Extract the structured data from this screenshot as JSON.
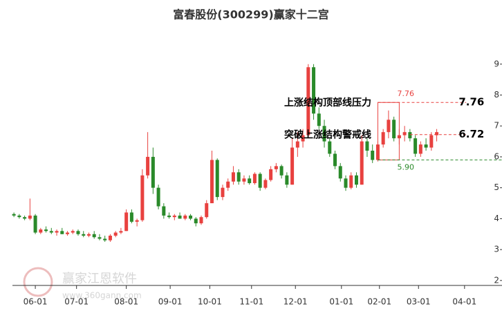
{
  "chart_data": {
    "type": "candlestick",
    "title": "富春股份(300299)赢家十二宫",
    "up_color": "#e8413f",
    "down_color": "#2a8a2a",
    "ylim": [
      1.84,
      9.8
    ],
    "yticks": [
      2,
      3,
      4,
      5,
      6,
      7,
      8,
      9
    ],
    "xlim": [
      -2.6,
      91.2
    ],
    "xticks": [
      {
        "value": 4,
        "label": "06-01"
      },
      {
        "value": 11.7,
        "label": "07-01"
      },
      {
        "value": 21,
        "label": "08-01"
      },
      {
        "value": 29.2,
        "label": "09-01"
      },
      {
        "value": 36.6,
        "label": "10-01"
      },
      {
        "value": 44.4,
        "label": "11-01"
      },
      {
        "value": 52.6,
        "label": "12-01"
      },
      {
        "value": 61.2,
        "label": "01-01"
      },
      {
        "value": 68.3,
        "label": "02-01"
      },
      {
        "value": 75.6,
        "label": "03-01"
      },
      {
        "value": 84.2,
        "label": "04-01"
      }
    ],
    "ohlc": [
      [
        4.15,
        4.2,
        4.05,
        4.1
      ],
      [
        4.1,
        4.15,
        4.0,
        4.05
      ],
      [
        4.05,
        4.1,
        3.95,
        4.0
      ],
      [
        4.0,
        4.65,
        3.95,
        4.1
      ],
      [
        4.1,
        4.15,
        3.5,
        3.55
      ],
      [
        3.55,
        3.7,
        3.5,
        3.65
      ],
      [
        3.65,
        3.75,
        3.55,
        3.6
      ],
      [
        3.6,
        3.7,
        3.5,
        3.55
      ],
      [
        3.55,
        3.65,
        3.45,
        3.6
      ],
      [
        3.6,
        3.7,
        3.5,
        3.5
      ],
      [
        3.5,
        3.6,
        3.45,
        3.55
      ],
      [
        3.55,
        3.65,
        3.5,
        3.6
      ],
      [
        3.6,
        3.65,
        3.45,
        3.5
      ],
      [
        3.5,
        3.6,
        3.4,
        3.45
      ],
      [
        3.45,
        3.55,
        3.4,
        3.5
      ],
      [
        3.5,
        3.6,
        3.35,
        3.4
      ],
      [
        3.4,
        3.5,
        3.3,
        3.35
      ],
      [
        3.35,
        3.45,
        3.25,
        3.3
      ],
      [
        3.3,
        3.5,
        3.25,
        3.45
      ],
      [
        3.45,
        3.6,
        3.4,
        3.55
      ],
      [
        3.55,
        3.7,
        3.5,
        3.6
      ],
      [
        3.6,
        4.3,
        3.6,
        4.2
      ],
      [
        4.2,
        4.3,
        3.85,
        3.9
      ],
      [
        3.9,
        4.0,
        3.75,
        3.95
      ],
      [
        3.95,
        5.6,
        3.9,
        5.4
      ],
      [
        5.4,
        6.8,
        5.3,
        6.0
      ],
      [
        6.0,
        6.3,
        4.8,
        5.0
      ],
      [
        5.0,
        5.1,
        4.3,
        4.4
      ],
      [
        4.4,
        4.5,
        4.0,
        4.1
      ],
      [
        4.1,
        4.2,
        4.0,
        4.05
      ],
      [
        4.05,
        4.15,
        3.95,
        4.1
      ],
      [
        4.1,
        4.2,
        4.0,
        4.0
      ],
      [
        4.0,
        4.15,
        3.95,
        4.1
      ],
      [
        4.1,
        4.15,
        3.95,
        4.0
      ],
      [
        4.0,
        4.05,
        3.75,
        3.85
      ],
      [
        3.85,
        4.1,
        3.8,
        4.05
      ],
      [
        4.05,
        4.6,
        4.0,
        4.5
      ],
      [
        4.5,
        6.2,
        4.5,
        5.9
      ],
      [
        5.9,
        5.95,
        4.6,
        4.7
      ],
      [
        4.7,
        5.1,
        4.6,
        5.0
      ],
      [
        5.0,
        5.3,
        4.9,
        5.2
      ],
      [
        5.2,
        5.7,
        5.1,
        5.5
      ],
      [
        5.5,
        5.6,
        5.1,
        5.2
      ],
      [
        5.2,
        5.4,
        5.1,
        5.3
      ],
      [
        5.3,
        5.4,
        5.1,
        5.15
      ],
      [
        5.15,
        5.5,
        5.1,
        5.45
      ],
      [
        5.45,
        5.5,
        4.9,
        5.0
      ],
      [
        5.0,
        5.3,
        4.95,
        5.25
      ],
      [
        5.25,
        5.7,
        5.2,
        5.6
      ],
      [
        5.6,
        5.8,
        5.5,
        5.7
      ],
      [
        5.7,
        5.75,
        5.3,
        5.4
      ],
      [
        5.4,
        5.5,
        5.0,
        5.1
      ],
      [
        5.1,
        6.6,
        5.1,
        6.3
      ],
      [
        6.3,
        6.8,
        6.0,
        6.5
      ],
      [
        6.5,
        6.9,
        6.3,
        6.7
      ],
      [
        6.7,
        9.0,
        6.6,
        8.9
      ],
      [
        8.9,
        9.0,
        7.2,
        7.4
      ],
      [
        7.4,
        7.6,
        6.9,
        7.0
      ],
      [
        7.0,
        7.2,
        6.3,
        6.5
      ],
      [
        6.5,
        6.6,
        6.0,
        6.1
      ],
      [
        6.1,
        6.2,
        5.6,
        5.7
      ],
      [
        5.7,
        5.8,
        5.2,
        5.3
      ],
      [
        5.3,
        5.4,
        4.9,
        5.0
      ],
      [
        5.0,
        5.5,
        4.95,
        5.4
      ],
      [
        5.4,
        5.5,
        5.0,
        5.1
      ],
      [
        5.1,
        6.7,
        5.1,
        6.5
      ],
      [
        6.5,
        6.6,
        6.0,
        6.2
      ],
      [
        6.2,
        6.4,
        5.8,
        5.9
      ],
      [
        5.9,
        6.5,
        5.85,
        6.4
      ],
      [
        6.4,
        6.9,
        6.3,
        6.8
      ],
      [
        6.8,
        7.5,
        6.6,
        7.2
      ],
      [
        7.2,
        7.3,
        6.5,
        6.6
      ],
      [
        6.6,
        6.9,
        6.4,
        6.7
      ],
      [
        6.7,
        7.0,
        6.5,
        6.8
      ],
      [
        6.8,
        6.9,
        6.5,
        6.6
      ],
      [
        6.6,
        6.7,
        6.0,
        6.1
      ],
      [
        6.1,
        6.5,
        6.0,
        6.4
      ],
      [
        6.4,
        6.6,
        6.2,
        6.3
      ],
      [
        6.3,
        6.8,
        6.2,
        6.7
      ],
      [
        6.7,
        6.9,
        6.5,
        6.8
      ]
    ],
    "resistance": {
      "text": "上涨结构顶部线压力",
      "value": 7.76,
      "color": "#e8413f"
    },
    "warning": {
      "text": "突破上涨结构警戒线",
      "value": 6.72,
      "color": "#e8413f"
    },
    "support": {
      "value": 5.9,
      "label": "5.90",
      "color": "#2a8a2a"
    }
  },
  "watermark": {
    "name": "赢家江恩软件",
    "url": "www.360gann.com"
  }
}
